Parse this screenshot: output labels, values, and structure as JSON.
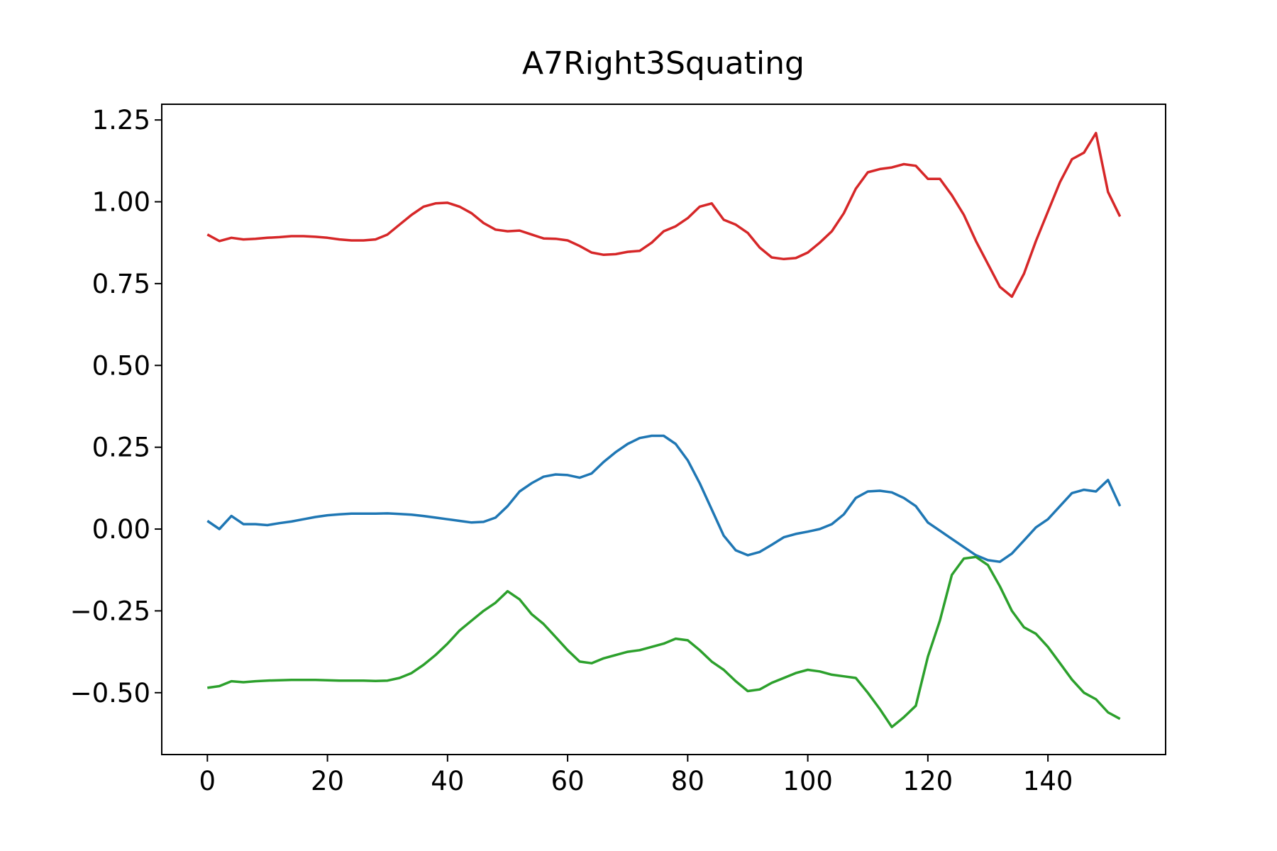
{
  "chart_data": {
    "type": "line",
    "title": "A7Right3Squating",
    "x": [
      0,
      2,
      4,
      6,
      8,
      10,
      12,
      14,
      16,
      18,
      20,
      22,
      24,
      26,
      28,
      30,
      32,
      34,
      36,
      38,
      40,
      42,
      44,
      46,
      48,
      50,
      52,
      54,
      56,
      58,
      60,
      62,
      64,
      66,
      68,
      70,
      72,
      74,
      76,
      78,
      80,
      82,
      84,
      86,
      88,
      90,
      92,
      94,
      96,
      98,
      100,
      102,
      104,
      106,
      108,
      110,
      112,
      114,
      116,
      118,
      120,
      122,
      124,
      126,
      128,
      130,
      132,
      134,
      136,
      138,
      140,
      142,
      144,
      146,
      148,
      150,
      152
    ],
    "series": [
      {
        "color": "#1f77b4",
        "values": [
          0.025,
          0.0,
          0.04,
          0.015,
          0.015,
          0.012,
          0.018,
          0.023,
          0.03,
          0.037,
          0.042,
          0.045,
          0.047,
          0.047,
          0.047,
          0.048,
          0.046,
          0.044,
          0.04,
          0.035,
          0.03,
          0.025,
          0.02,
          0.022,
          0.035,
          0.07,
          0.115,
          0.14,
          0.16,
          0.167,
          0.165,
          0.157,
          0.17,
          0.205,
          0.235,
          0.26,
          0.278,
          0.285,
          0.285,
          0.26,
          0.21,
          0.14,
          0.06,
          -0.02,
          -0.065,
          -0.08,
          -0.07,
          -0.048,
          -0.025,
          -0.015,
          -0.008,
          0.0,
          0.015,
          0.045,
          0.095,
          0.115,
          0.117,
          0.112,
          0.095,
          0.07,
          0.02,
          -0.005,
          -0.03,
          -0.055,
          -0.08,
          -0.095,
          -0.1,
          -0.075,
          -0.035,
          0.005,
          0.03,
          0.07,
          0.11,
          0.12,
          0.115,
          0.15,
          0.07
        ]
      },
      {
        "color": "#d62728",
        "values": [
          0.9,
          0.88,
          0.89,
          0.885,
          0.887,
          0.89,
          0.892,
          0.895,
          0.895,
          0.893,
          0.89,
          0.885,
          0.882,
          0.882,
          0.885,
          0.9,
          0.93,
          0.96,
          0.985,
          0.995,
          0.997,
          0.985,
          0.965,
          0.935,
          0.915,
          0.91,
          0.912,
          0.9,
          0.888,
          0.887,
          0.882,
          0.865,
          0.845,
          0.838,
          0.84,
          0.847,
          0.85,
          0.875,
          0.91,
          0.925,
          0.95,
          0.985,
          0.995,
          0.945,
          0.93,
          0.905,
          0.86,
          0.83,
          0.825,
          0.828,
          0.845,
          0.875,
          0.91,
          0.965,
          1.04,
          1.09,
          1.1,
          1.105,
          1.115,
          1.11,
          1.07,
          1.07,
          1.02,
          0.96,
          0.88,
          0.81,
          0.74,
          0.71,
          0.78,
          0.88,
          0.97,
          1.06,
          1.13,
          1.15,
          1.21,
          1.03,
          0.955
        ]
      },
      {
        "color": "#2ca02c",
        "values": [
          -0.485,
          -0.48,
          -0.465,
          -0.468,
          -0.465,
          -0.463,
          -0.462,
          -0.461,
          -0.461,
          -0.461,
          -0.462,
          -0.463,
          -0.463,
          -0.463,
          -0.464,
          -0.463,
          -0.455,
          -0.44,
          -0.415,
          -0.385,
          -0.35,
          -0.31,
          -0.28,
          -0.25,
          -0.225,
          -0.19,
          -0.215,
          -0.26,
          -0.29,
          -0.33,
          -0.37,
          -0.405,
          -0.41,
          -0.395,
          -0.385,
          -0.375,
          -0.37,
          -0.36,
          -0.35,
          -0.335,
          -0.34,
          -0.37,
          -0.405,
          -0.43,
          -0.465,
          -0.495,
          -0.49,
          -0.47,
          -0.455,
          -0.44,
          -0.43,
          -0.435,
          -0.445,
          -0.45,
          -0.455,
          -0.5,
          -0.55,
          -0.605,
          -0.575,
          -0.54,
          -0.39,
          -0.28,
          -0.14,
          -0.09,
          -0.085,
          -0.11,
          -0.175,
          -0.25,
          -0.3,
          -0.32,
          -0.36,
          -0.41,
          -0.46,
          -0.5,
          -0.52,
          -0.56,
          -0.58
        ]
      }
    ],
    "xlim": [
      -7.6,
      159.6
    ],
    "xticks": [
      0,
      20,
      40,
      60,
      80,
      100,
      120,
      140
    ],
    "ylim": [
      -0.689,
      1.298
    ],
    "yticks": [
      {
        "value": -0.5,
        "label": "−0.50"
      },
      {
        "value": -0.25,
        "label": "−0.25"
      },
      {
        "value": 0,
        "label": "0.00"
      },
      {
        "value": 0.25,
        "label": "0.25"
      },
      {
        "value": 0.5,
        "label": "0.50"
      },
      {
        "value": 0.75,
        "label": "0.75"
      },
      {
        "value": 1,
        "label": "1.00"
      },
      {
        "value": 1.25,
        "label": "1.25"
      }
    ],
    "grid": false
  }
}
